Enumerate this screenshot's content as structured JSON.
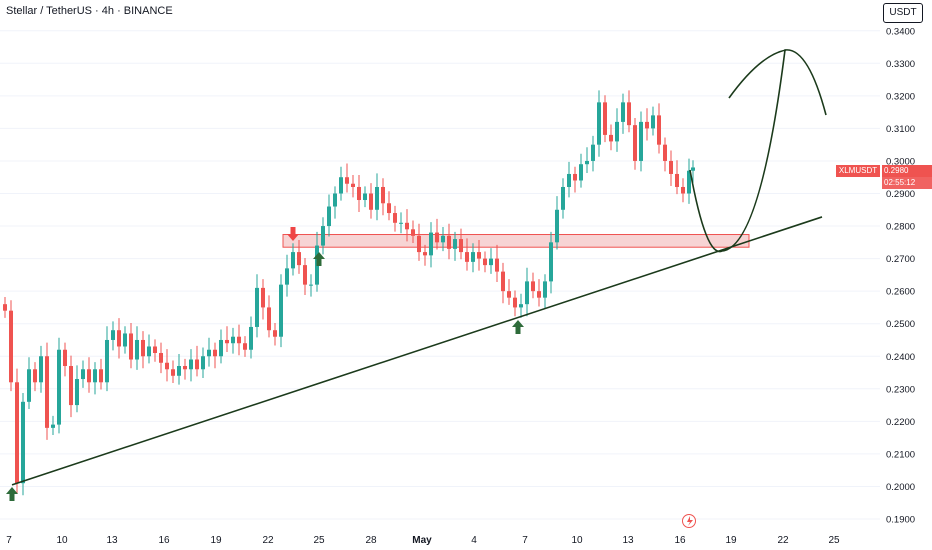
{
  "header": {
    "title": "Stellar / TetherUS · 4h · BINANCE",
    "currency_button": "USDT"
  },
  "price_tag": {
    "symbol": "XLMUSDT",
    "price": "0.2980",
    "countdown": "02:55:12"
  },
  "colors": {
    "up": "#26a69a",
    "down": "#ef5350",
    "zone_fill": "#f2b8b8",
    "zone_stroke": "#ef5350",
    "trendline": "#1b3a1b",
    "arrow_up": "#2e6b3a",
    "arrow_down": "#ef4444"
  },
  "chart_data": {
    "type": "candlestick",
    "y_axis": {
      "min": 0.19,
      "max": 0.345,
      "ticks": [
        "0.3400",
        "0.3300",
        "0.3200",
        "0.3100",
        "0.3000",
        "0.2900",
        "0.2800",
        "0.2700",
        "0.2600",
        "0.2500",
        "0.2400",
        "0.2300",
        "0.2200",
        "0.2100",
        "0.2000",
        "0.1900"
      ]
    },
    "x_axis": {
      "ticks": [
        "7",
        "10",
        "13",
        "16",
        "19",
        "22",
        "25",
        "28",
        "May",
        "4",
        "7",
        "10",
        "13",
        "16",
        "19",
        "22",
        "25"
      ]
    },
    "close_series": [
      {
        "x": 2,
        "c": 0.254
      },
      {
        "x": 8,
        "c": 0.232
      },
      {
        "x": 14,
        "c": 0.201
      },
      {
        "x": 20,
        "c": 0.226
      },
      {
        "x": 26,
        "c": 0.236
      },
      {
        "x": 32,
        "c": 0.232
      },
      {
        "x": 38,
        "c": 0.24
      },
      {
        "x": 44,
        "c": 0.218
      },
      {
        "x": 50,
        "c": 0.219
      },
      {
        "x": 56,
        "c": 0.242
      },
      {
        "x": 62,
        "c": 0.237
      },
      {
        "x": 68,
        "c": 0.225
      },
      {
        "x": 74,
        "c": 0.233
      },
      {
        "x": 80,
        "c": 0.236
      },
      {
        "x": 86,
        "c": 0.232
      },
      {
        "x": 92,
        "c": 0.236
      },
      {
        "x": 98,
        "c": 0.232
      },
      {
        "x": 104,
        "c": 0.245
      },
      {
        "x": 110,
        "c": 0.248
      },
      {
        "x": 116,
        "c": 0.243
      },
      {
        "x": 122,
        "c": 0.247
      },
      {
        "x": 128,
        "c": 0.239
      },
      {
        "x": 134,
        "c": 0.245
      },
      {
        "x": 140,
        "c": 0.24
      },
      {
        "x": 146,
        "c": 0.243
      },
      {
        "x": 152,
        "c": 0.241
      },
      {
        "x": 158,
        "c": 0.238
      },
      {
        "x": 164,
        "c": 0.236
      },
      {
        "x": 170,
        "c": 0.234
      },
      {
        "x": 176,
        "c": 0.237
      },
      {
        "x": 182,
        "c": 0.236
      },
      {
        "x": 188,
        "c": 0.239
      },
      {
        "x": 194,
        "c": 0.236
      },
      {
        "x": 200,
        "c": 0.24
      },
      {
        "x": 206,
        "c": 0.242
      },
      {
        "x": 212,
        "c": 0.24
      },
      {
        "x": 218,
        "c": 0.245
      },
      {
        "x": 224,
        "c": 0.244
      },
      {
        "x": 230,
        "c": 0.246
      },
      {
        "x": 236,
        "c": 0.244
      },
      {
        "x": 242,
        "c": 0.242
      },
      {
        "x": 248,
        "c": 0.249
      },
      {
        "x": 254,
        "c": 0.261
      },
      {
        "x": 260,
        "c": 0.255
      },
      {
        "x": 266,
        "c": 0.248
      },
      {
        "x": 272,
        "c": 0.246
      },
      {
        "x": 278,
        "c": 0.262
      },
      {
        "x": 284,
        "c": 0.267
      },
      {
        "x": 290,
        "c": 0.272
      },
      {
        "x": 296,
        "c": 0.268
      },
      {
        "x": 302,
        "c": 0.262
      },
      {
        "x": 308,
        "c": 0.262
      },
      {
        "x": 314,
        "c": 0.274
      },
      {
        "x": 320,
        "c": 0.28
      },
      {
        "x": 326,
        "c": 0.286
      },
      {
        "x": 332,
        "c": 0.29
      },
      {
        "x": 338,
        "c": 0.295
      },
      {
        "x": 344,
        "c": 0.293
      },
      {
        "x": 350,
        "c": 0.292
      },
      {
        "x": 356,
        "c": 0.288
      },
      {
        "x": 362,
        "c": 0.29
      },
      {
        "x": 368,
        "c": 0.285
      },
      {
        "x": 374,
        "c": 0.292
      },
      {
        "x": 380,
        "c": 0.287
      },
      {
        "x": 386,
        "c": 0.284
      },
      {
        "x": 392,
        "c": 0.281
      },
      {
        "x": 398,
        "c": 0.281
      },
      {
        "x": 404,
        "c": 0.279
      },
      {
        "x": 410,
        "c": 0.277
      },
      {
        "x": 416,
        "c": 0.272
      },
      {
        "x": 422,
        "c": 0.271
      },
      {
        "x": 428,
        "c": 0.278
      },
      {
        "x": 434,
        "c": 0.275
      },
      {
        "x": 440,
        "c": 0.277
      },
      {
        "x": 446,
        "c": 0.273
      },
      {
        "x": 452,
        "c": 0.276
      },
      {
        "x": 458,
        "c": 0.272
      },
      {
        "x": 464,
        "c": 0.269
      },
      {
        "x": 470,
        "c": 0.272
      },
      {
        "x": 476,
        "c": 0.27
      },
      {
        "x": 482,
        "c": 0.268
      },
      {
        "x": 488,
        "c": 0.27
      },
      {
        "x": 494,
        "c": 0.266
      },
      {
        "x": 500,
        "c": 0.26
      },
      {
        "x": 506,
        "c": 0.258
      },
      {
        "x": 512,
        "c": 0.255
      },
      {
        "x": 518,
        "c": 0.256
      },
      {
        "x": 524,
        "c": 0.263
      },
      {
        "x": 530,
        "c": 0.26
      },
      {
        "x": 536,
        "c": 0.258
      },
      {
        "x": 542,
        "c": 0.263
      },
      {
        "x": 548,
        "c": 0.275
      },
      {
        "x": 554,
        "c": 0.285
      },
      {
        "x": 560,
        "c": 0.292
      },
      {
        "x": 566,
        "c": 0.296
      },
      {
        "x": 572,
        "c": 0.294
      },
      {
        "x": 578,
        "c": 0.299
      },
      {
        "x": 584,
        "c": 0.3
      },
      {
        "x": 590,
        "c": 0.305
      },
      {
        "x": 596,
        "c": 0.318
      },
      {
        "x": 602,
        "c": 0.308
      },
      {
        "x": 608,
        "c": 0.306
      },
      {
        "x": 614,
        "c": 0.312
      },
      {
        "x": 620,
        "c": 0.318
      },
      {
        "x": 626,
        "c": 0.311
      },
      {
        "x": 632,
        "c": 0.3
      },
      {
        "x": 638,
        "c": 0.312
      },
      {
        "x": 644,
        "c": 0.31
      },
      {
        "x": 650,
        "c": 0.314
      },
      {
        "x": 656,
        "c": 0.305
      },
      {
        "x": 662,
        "c": 0.3
      },
      {
        "x": 668,
        "c": 0.296
      },
      {
        "x": 674,
        "c": 0.292
      },
      {
        "x": 680,
        "c": 0.29
      },
      {
        "x": 686,
        "c": 0.297
      },
      {
        "x": 690,
        "c": 0.298
      }
    ],
    "zone": {
      "y_low": 0.2735,
      "y_high": 0.2774
    },
    "trendline": {
      "from_y": 0.2005,
      "to_y": 0.2828
    }
  }
}
